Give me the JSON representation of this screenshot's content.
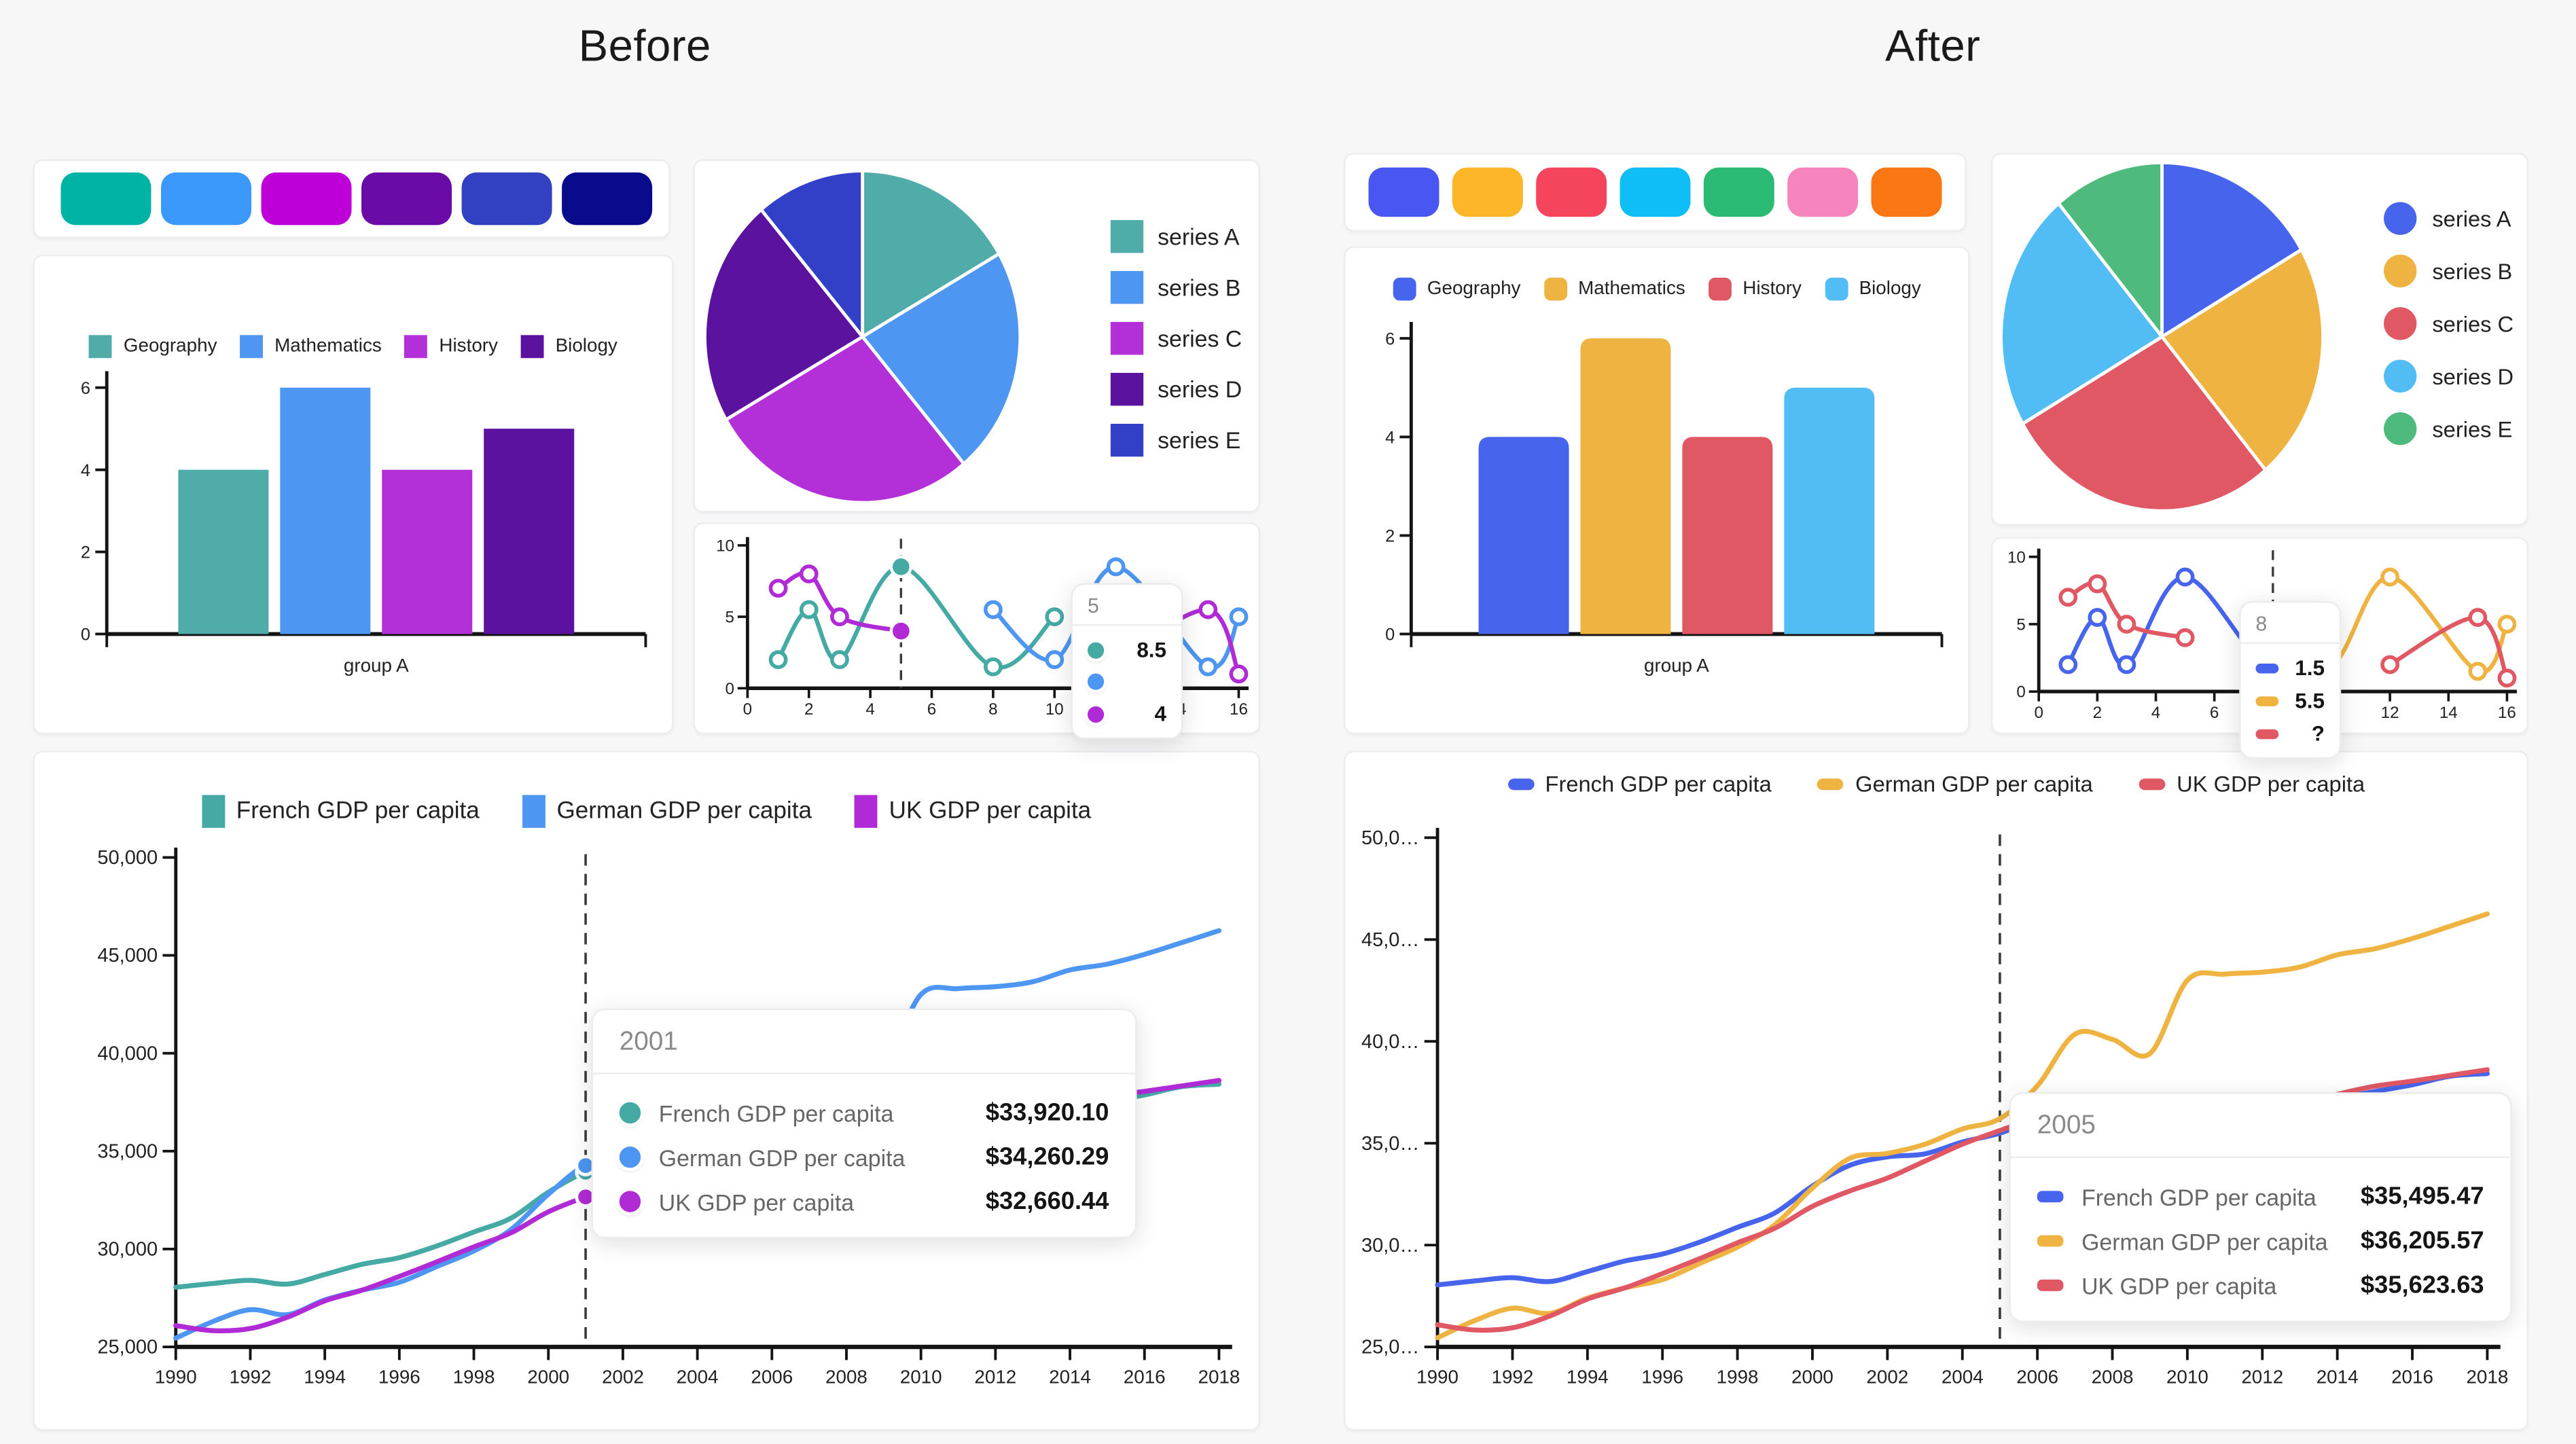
{
  "titles": {
    "before": "Before",
    "after": "After"
  },
  "palettes": {
    "before": [
      "#00B3A4",
      "#3B99FB",
      "#BE00D8",
      "#6A0BA8",
      "#3240C2",
      "#0A0A8C"
    ],
    "after": [
      "#4A56F2",
      "#FDB628",
      "#F4455C",
      "#0FBEF6",
      "#2BBA73",
      "#F685BE",
      "#FB7713"
    ]
  },
  "chart_data": [
    {
      "id": "before-bar",
      "panel": "before",
      "type": "bar",
      "categories": [
        "group A"
      ],
      "ylim": [
        0,
        6
      ],
      "yticks": [
        0,
        2,
        4,
        6
      ],
      "rounded": false,
      "legend_marker": "square",
      "series": [
        {
          "name": "Geography",
          "color": "#4FACA9",
          "values": [
            4
          ]
        },
        {
          "name": "Mathematics",
          "color": "#4D96F2",
          "values": [
            6
          ]
        },
        {
          "name": "History",
          "color": "#B32FD8",
          "values": [
            4
          ]
        },
        {
          "name": "Biology",
          "color": "#5B129F",
          "values": [
            5
          ]
        }
      ]
    },
    {
      "id": "after-bar",
      "panel": "after",
      "type": "bar",
      "categories": [
        "group A"
      ],
      "ylim": [
        0,
        6
      ],
      "yticks": [
        0,
        2,
        4,
        6
      ],
      "rounded": true,
      "legend_marker": "rounded-square",
      "series": [
        {
          "name": "Geography",
          "color": "#4665EC",
          "values": [
            4
          ]
        },
        {
          "name": "Mathematics",
          "color": "#EFB341",
          "values": [
            6
          ]
        },
        {
          "name": "History",
          "color": "#E05864",
          "values": [
            4
          ]
        },
        {
          "name": "Biology",
          "color": "#52BCF5",
          "values": [
            5
          ]
        }
      ]
    },
    {
      "id": "before-pie",
      "panel": "before",
      "type": "pie",
      "labels": [
        "series A",
        "series B",
        "series C",
        "series D",
        "series E"
      ],
      "values": [
        3,
        4,
        5,
        4,
        2
      ],
      "colors": [
        "#4FACA9",
        "#4D96F2",
        "#B32FD8",
        "#5B129F",
        "#3240C8"
      ],
      "legend_position": "right",
      "legend_marker": "square"
    },
    {
      "id": "after-pie",
      "panel": "after",
      "type": "pie",
      "labels": [
        "series A",
        "series B",
        "series C",
        "series D",
        "series E"
      ],
      "values": [
        3,
        4,
        5,
        4,
        2
      ],
      "colors": [
        "#4665EC",
        "#EFB341",
        "#E05864",
        "#52BCF5",
        "#4FBA7D"
      ],
      "legend_position": "right",
      "legend_marker": "circle"
    },
    {
      "id": "before-sline",
      "panel": "before",
      "type": "line",
      "xlim": [
        0,
        16
      ],
      "xticks": [
        0,
        2,
        4,
        6,
        8,
        10,
        12,
        14,
        16
      ],
      "ylim": [
        0,
        10
      ],
      "yticks": [
        0,
        5,
        10
      ],
      "series": [
        {
          "color": "#45A9A4",
          "segments": [
            [
              [
                1,
                2
              ],
              [
                2,
                5.5
              ],
              [
                3,
                2
              ],
              [
                5,
                8.5
              ],
              [
                8,
                1.5
              ],
              [
                10,
                5
              ]
            ]
          ]
        },
        {
          "color": "#4D96F2",
          "segments": [
            [
              [
                8,
                5.5
              ],
              [
                10,
                2
              ],
              [
                12,
                8.5
              ],
              [
                15,
                1.5
              ],
              [
                16,
                5
              ]
            ]
          ]
        },
        {
          "color": "#B02BD6",
          "segments": [
            [
              [
                1,
                7
              ],
              [
                2,
                8
              ],
              [
                3,
                5
              ],
              [
                5,
                4
              ]
            ],
            [
              [
                12,
                2
              ],
              [
                15,
                5.5
              ],
              [
                16,
                1
              ]
            ]
          ]
        }
      ],
      "cursor": {
        "x": 5,
        "tooltip": {
          "header": "5",
          "rows": [
            {
              "value": "8.5"
            },
            {
              "value": ""
            },
            {
              "value": "4"
            }
          ]
        }
      }
    },
    {
      "id": "after-sline",
      "panel": "after",
      "type": "line",
      "xlim": [
        0,
        16
      ],
      "xticks": [
        0,
        2,
        4,
        6,
        8,
        10,
        12,
        14,
        16
      ],
      "ylim": [
        0,
        10
      ],
      "yticks": [
        0,
        5,
        10
      ],
      "series": [
        {
          "color": "#4665EC",
          "segments": [
            [
              [
                1,
                2
              ],
              [
                2,
                5.5
              ],
              [
                3,
                2
              ],
              [
                5,
                8.5
              ],
              [
                8,
                1.5
              ],
              [
                10,
                5
              ]
            ]
          ]
        },
        {
          "color": "#EFB341",
          "segments": [
            [
              [
                8,
                5.5
              ],
              [
                10,
                2
              ],
              [
                12,
                8.5
              ],
              [
                15,
                1.5
              ],
              [
                16,
                5
              ]
            ]
          ]
        },
        {
          "color": "#E05864",
          "segments": [
            [
              [
                1,
                7
              ],
              [
                2,
                8
              ],
              [
                3,
                5
              ],
              [
                5,
                4
              ]
            ],
            [
              [
                12,
                2
              ],
              [
                15,
                5.5
              ],
              [
                16,
                1
              ]
            ]
          ]
        }
      ],
      "cursor": {
        "x": 8,
        "tooltip": {
          "header": "8",
          "rows": [
            {
              "value": "1.5"
            },
            {
              "value": "5.5"
            },
            {
              "value": "?"
            }
          ]
        }
      }
    },
    {
      "id": "before-gdp",
      "panel": "before",
      "type": "line",
      "x": [
        1990,
        1991,
        1992,
        1993,
        1994,
        1995,
        1996,
        1997,
        1998,
        1999,
        2000,
        2001,
        2002,
        2003,
        2004,
        2005,
        2006,
        2007,
        2008,
        2009,
        2010,
        2011,
        2012,
        2013,
        2014,
        2015,
        2016,
        2017,
        2018
      ],
      "xticks": [
        1990,
        1992,
        1994,
        1996,
        1998,
        2000,
        2002,
        2004,
        2006,
        2008,
        2010,
        2012,
        2014,
        2016,
        2018
      ],
      "ylim": [
        25000,
        50000
      ],
      "yticks": [
        25000,
        30000,
        35000,
        40000,
        45000,
        50000
      ],
      "ytick_labels": [
        "25,000",
        "30,000",
        "35,000",
        "40,000",
        "45,000",
        "50,000"
      ],
      "legend_marker": "square",
      "series": [
        {
          "name": "French GDP per capita",
          "color": "#45A9A4",
          "values": [
            28046,
            28240,
            28400,
            28210,
            28700,
            29220,
            29560,
            30150,
            30870,
            31580,
            32900,
            33920.1,
            34330,
            34480,
            35060,
            35495.47,
            36230,
            36940,
            36910,
            35830,
            36340,
            36970,
            36960,
            37070,
            37220,
            37540,
            37870,
            38290,
            38420
          ]
        },
        {
          "name": "German GDP per capita",
          "color": "#4D96F2",
          "values": [
            25450,
            26300,
            26900,
            26650,
            27400,
            27900,
            28300,
            29100,
            29900,
            31000,
            32800,
            34260.29,
            34500,
            34950,
            35700,
            36205.57,
            37820,
            40350,
            40100,
            39400,
            43000,
            43300,
            43400,
            43650,
            44250,
            44550,
            45050,
            45650,
            46260
          ]
        },
        {
          "name": "UK GDP per capita",
          "color": "#B02BD6",
          "values": [
            26090,
            25830,
            25940,
            26520,
            27350,
            27900,
            28600,
            29340,
            30110,
            30830,
            31900,
            32660.44,
            33290,
            34120,
            34950,
            35623.63,
            36250,
            36800,
            36520,
            35400,
            35900,
            36200,
            36500,
            36900,
            37400,
            37800,
            38050,
            38330,
            38610
          ]
        }
      ],
      "cursor": {
        "x": 2001,
        "dots": true,
        "tooltip": {
          "header": "2001",
          "rows": [
            {
              "label": "French GDP per capita",
              "value": "$33,920.10"
            },
            {
              "label": "German GDP per capita",
              "value": "$34,260.29"
            },
            {
              "label": "UK GDP per capita",
              "value": "$32,660.44"
            }
          ]
        }
      }
    },
    {
      "id": "after-gdp",
      "panel": "after",
      "type": "line",
      "x": [
        1990,
        1991,
        1992,
        1993,
        1994,
        1995,
        1996,
        1997,
        1998,
        1999,
        2000,
        2001,
        2002,
        2003,
        2004,
        2005,
        2006,
        2007,
        2008,
        2009,
        2010,
        2011,
        2012,
        2013,
        2014,
        2015,
        2016,
        2017,
        2018
      ],
      "xticks": [
        1990,
        1992,
        1994,
        1996,
        1998,
        2000,
        2002,
        2004,
        2006,
        2008,
        2010,
        2012,
        2014,
        2016,
        2018
      ],
      "ylim": [
        25000,
        50000
      ],
      "yticks": [
        25000,
        30000,
        35000,
        40000,
        45000,
        50000
      ],
      "ytick_labels": [
        "25,0…",
        "30,0…",
        "35,0…",
        "40,0…",
        "45,0…",
        "50,0…"
      ],
      "legend_marker": "dash",
      "series": [
        {
          "name": "French GDP per capita",
          "color": "#4665EC",
          "values": [
            28046,
            28240,
            28400,
            28210,
            28700,
            29220,
            29560,
            30150,
            30870,
            31580,
            32900,
            33920.1,
            34330,
            34480,
            35060,
            35495.47,
            36230,
            36940,
            36910,
            35830,
            36340,
            36970,
            36960,
            37070,
            37220,
            37540,
            37870,
            38290,
            38420
          ]
        },
        {
          "name": "German GDP per capita",
          "color": "#EFB341",
          "values": [
            25450,
            26300,
            26900,
            26650,
            27400,
            27900,
            28300,
            29100,
            29900,
            31000,
            32800,
            34260.29,
            34500,
            34950,
            35700,
            36205.57,
            37820,
            40350,
            40100,
            39400,
            43000,
            43300,
            43400,
            43650,
            44250,
            44550,
            45050,
            45650,
            46260
          ]
        },
        {
          "name": "UK GDP per capita",
          "color": "#E05864",
          "values": [
            26090,
            25830,
            25940,
            26520,
            27350,
            27900,
            28600,
            29340,
            30110,
            30830,
            31900,
            32660.44,
            33290,
            34120,
            34950,
            35623.63,
            36250,
            36800,
            36520,
            35400,
            35900,
            36200,
            36500,
            36900,
            37400,
            37800,
            38050,
            38330,
            38610
          ]
        }
      ],
      "cursor": {
        "x": 2005,
        "dots": false,
        "tooltip": {
          "header": "2005",
          "rows": [
            {
              "label": "French GDP per capita",
              "value": "$35,495.47"
            },
            {
              "label": "German GDP per capita",
              "value": "$36,205.57"
            },
            {
              "label": "UK GDP per capita",
              "value": "$35,623.63"
            }
          ]
        }
      }
    }
  ]
}
